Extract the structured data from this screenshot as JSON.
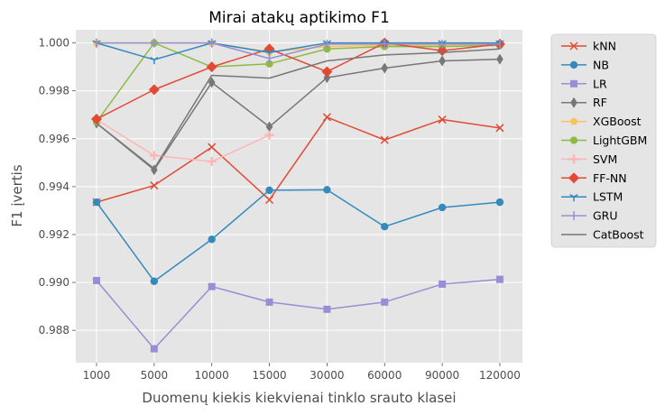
{
  "chart_data": {
    "type": "line",
    "title": "Mirai atakų aptikimo F1",
    "xlabel": "Duomenų kiekis kiekvienai tinklo srauto klasei",
    "ylabel": "F1 įvertis",
    "categories": [
      "1000",
      "5000",
      "10000",
      "15000",
      "30000",
      "60000",
      "90000",
      "120000"
    ],
    "ylim": [
      0.98665,
      1.00055
    ],
    "yticks": [
      "0.988",
      "0.990",
      "0.992",
      "0.994",
      "0.996",
      "0.998",
      "1.000"
    ],
    "grid": true,
    "legend_position": "outside-right",
    "series": [
      {
        "name": "kNN",
        "color": "#E24A33",
        "marker": "x",
        "values": [
          0.99335,
          0.99405,
          0.99565,
          0.99345,
          0.9969,
          0.99595,
          0.9968,
          0.99645
        ]
      },
      {
        "name": "NB",
        "color": "#348ABD",
        "marker": "circle",
        "values": [
          0.99335,
          0.99005,
          0.9918,
          0.99385,
          0.99387,
          0.99233,
          0.99313,
          0.99335
        ]
      },
      {
        "name": "LR",
        "color": "#988ED5",
        "marker": "square",
        "values": [
          0.99008,
          0.98723,
          0.98983,
          0.98918,
          0.98888,
          0.98918,
          0.98993,
          0.99013
        ]
      },
      {
        "name": "RF",
        "color": "#777777",
        "marker": "thin_diamond",
        "values": [
          0.99665,
          0.9947,
          0.99835,
          0.9965,
          0.99855,
          0.99895,
          0.99925,
          0.99932
        ]
      },
      {
        "name": "XGBoost",
        "color": "#FBC15E",
        "marker": "pentagon",
        "values": [
          1.0,
          1.0,
          1.0,
          0.99962,
          0.99985,
          0.9999,
          0.99988,
          0.99995
        ]
      },
      {
        "name": "LightGBM",
        "color": "#8EBA42",
        "marker": "octagon",
        "values": [
          0.9967,
          1.0,
          0.999,
          0.99913,
          0.99975,
          0.99985,
          0.99985,
          0.9999
        ]
      },
      {
        "name": "SVM",
        "color": "#FFB5B8",
        "marker": "plus",
        "values": [
          0.9968,
          0.9953,
          0.99505,
          0.99615,
          null,
          null,
          null,
          null
        ]
      },
      {
        "name": "FF-NN",
        "color": "#E24A33",
        "marker": "diamond",
        "values": [
          0.99682,
          0.99805,
          0.999,
          0.99975,
          0.9988,
          1.0,
          0.99968,
          0.99995
        ]
      },
      {
        "name": "LSTM",
        "color": "#348ABD",
        "marker": "tri_down",
        "values": [
          1.0,
          0.9993,
          1.0,
          0.9996,
          1.0,
          1.0,
          1.0,
          1.0
        ]
      },
      {
        "name": "GRU",
        "color": "#988ED5",
        "marker": "vline",
        "values": [
          1.0,
          1.0,
          1.0,
          0.99935,
          0.99995,
          0.99995,
          0.99995,
          0.99995
        ]
      },
      {
        "name": "CatBoost",
        "color": "#777777",
        "marker": "none",
        "values": [
          0.99665,
          0.99475,
          0.99865,
          0.99853,
          0.99925,
          0.9995,
          0.9996,
          0.99975
        ]
      }
    ]
  }
}
